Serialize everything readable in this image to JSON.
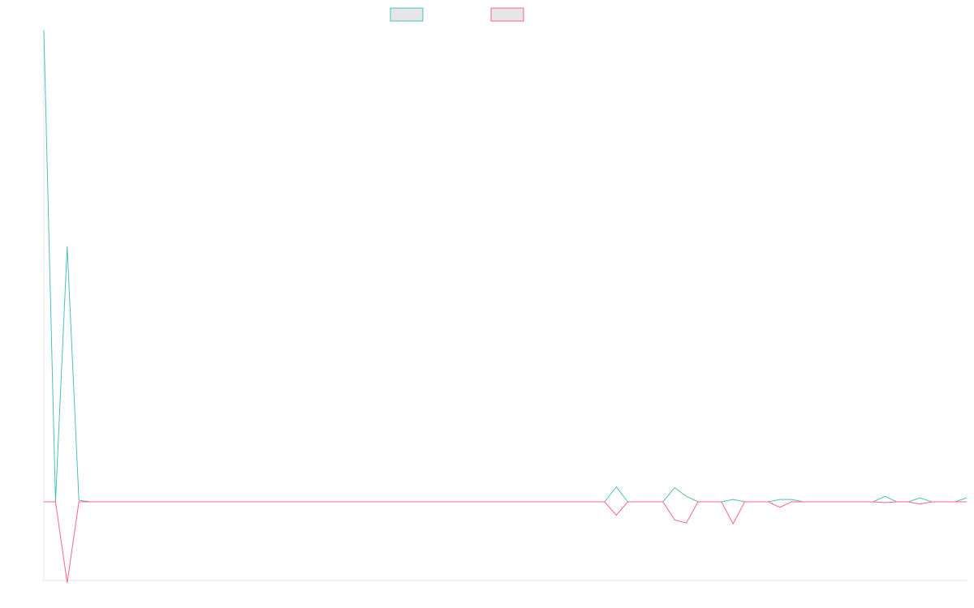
{
  "chart_data": {
    "type": "line",
    "title": "",
    "xlabel": "",
    "ylabel": "",
    "x_count": 80,
    "ylim": [
      -100,
      600
    ],
    "grid": false,
    "legend": {
      "placement": "top-center"
    },
    "series": [
      {
        "name": "",
        "color": "#4bc0c0",
        "fill": "#e6e6e6",
        "values": [
          600,
          0,
          325,
          2,
          0,
          0,
          0,
          0,
          0,
          0,
          0,
          0,
          0,
          0,
          0,
          0,
          0,
          0,
          0,
          0,
          0,
          0,
          0,
          0,
          0,
          0,
          0,
          0,
          0,
          0,
          0,
          0,
          0,
          0,
          0,
          0,
          0,
          0,
          0,
          0,
          0,
          0,
          0,
          0,
          0,
          0,
          0,
          0,
          0,
          19,
          0,
          0,
          0,
          0,
          18,
          7,
          0,
          0,
          0,
          3,
          0,
          0,
          0,
          3,
          3,
          0,
          0,
          0,
          0,
          0,
          0,
          0,
          7,
          0,
          0,
          5,
          0,
          0,
          0,
          5
        ]
      },
      {
        "name": "",
        "color": "#ff6384",
        "fill": "#e6e6e6",
        "values": [
          0,
          0,
          -103,
          0,
          0,
          0,
          0,
          0,
          0,
          0,
          0,
          0,
          0,
          0,
          0,
          0,
          0,
          0,
          0,
          0,
          0,
          0,
          0,
          0,
          0,
          0,
          0,
          0,
          0,
          0,
          0,
          0,
          0,
          0,
          0,
          0,
          0,
          0,
          0,
          0,
          0,
          0,
          0,
          0,
          0,
          0,
          0,
          0,
          0,
          -17,
          0,
          0,
          0,
          0,
          -23,
          -27,
          0,
          0,
          0,
          -28,
          0,
          0,
          0,
          -7,
          0,
          0,
          0,
          0,
          0,
          0,
          0,
          0,
          -1,
          0,
          0,
          -3,
          0,
          0,
          0,
          0
        ]
      }
    ]
  }
}
